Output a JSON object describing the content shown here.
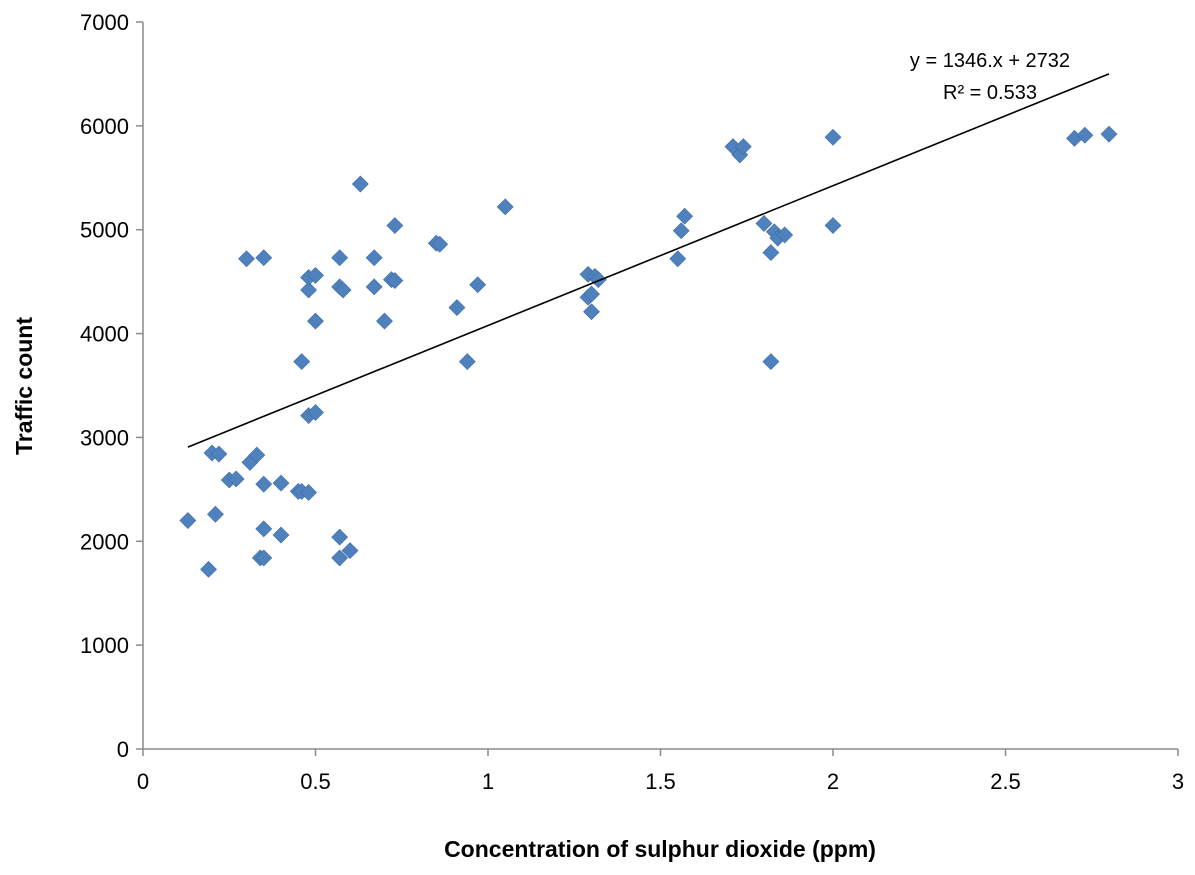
{
  "chart_data": {
    "type": "scatter",
    "title": "",
    "xlabel": "Concentration of sulphur dioxide (ppm)",
    "ylabel": "Traffic count",
    "xlim": [
      0,
      3
    ],
    "ylim": [
      0,
      7000
    ],
    "x_ticks": [
      "0",
      "0.5",
      "1",
      "1.5",
      "2",
      "2.5",
      "3"
    ],
    "y_ticks": [
      "0",
      "1000",
      "2000",
      "3000",
      "4000",
      "5000",
      "6000",
      "7000"
    ],
    "grid": false,
    "legend": "none",
    "marker_color": "#4f81bd",
    "trendline": {
      "equation_label": "y = 1346.x + 2732",
      "r2_label": "R² = 0.533",
      "slope": 1346,
      "intercept": 2732,
      "x_range": [
        0.13,
        2.8
      ]
    },
    "points": [
      [
        0.13,
        2200
      ],
      [
        0.19,
        1730
      ],
      [
        0.2,
        2850
      ],
      [
        0.21,
        2260
      ],
      [
        0.22,
        2840
      ],
      [
        0.25,
        2590
      ],
      [
        0.27,
        2600
      ],
      [
        0.3,
        4720
      ],
      [
        0.31,
        2760
      ],
      [
        0.33,
        2830
      ],
      [
        0.34,
        1840
      ],
      [
        0.35,
        1840
      ],
      [
        0.35,
        2550
      ],
      [
        0.35,
        2120
      ],
      [
        0.35,
        4730
      ],
      [
        0.4,
        2560
      ],
      [
        0.4,
        2060
      ],
      [
        0.45,
        2480
      ],
      [
        0.46,
        2480
      ],
      [
        0.46,
        3730
      ],
      [
        0.48,
        2470
      ],
      [
        0.48,
        3210
      ],
      [
        0.48,
        4420
      ],
      [
        0.48,
        4540
      ],
      [
        0.5,
        4560
      ],
      [
        0.5,
        4120
      ],
      [
        0.5,
        3240
      ],
      [
        0.57,
        1840
      ],
      [
        0.57,
        2040
      ],
      [
        0.57,
        4450
      ],
      [
        0.57,
        4730
      ],
      [
        0.58,
        4420
      ],
      [
        0.6,
        1910
      ],
      [
        0.63,
        5440
      ],
      [
        0.67,
        4730
      ],
      [
        0.67,
        4450
      ],
      [
        0.7,
        4120
      ],
      [
        0.72,
        4520
      ],
      [
        0.73,
        4510
      ],
      [
        0.73,
        5040
      ],
      [
        0.85,
        4870
      ],
      [
        0.86,
        4860
      ],
      [
        0.91,
        4250
      ],
      [
        0.94,
        3730
      ],
      [
        0.97,
        4470
      ],
      [
        1.05,
        5220
      ],
      [
        1.29,
        4570
      ],
      [
        1.29,
        4350
      ],
      [
        1.3,
        4210
      ],
      [
        1.3,
        4380
      ],
      [
        1.31,
        4550
      ],
      [
        1.32,
        4520
      ],
      [
        1.55,
        4720
      ],
      [
        1.56,
        4990
      ],
      [
        1.57,
        5130
      ],
      [
        1.71,
        5800
      ],
      [
        1.73,
        5720
      ],
      [
        1.74,
        5800
      ],
      [
        1.8,
        5060
      ],
      [
        1.82,
        4780
      ],
      [
        1.82,
        3730
      ],
      [
        1.83,
        4980
      ],
      [
        1.84,
        4920
      ],
      [
        1.86,
        4950
      ],
      [
        2.0,
        5890
      ],
      [
        2.0,
        5040
      ],
      [
        2.7,
        5880
      ],
      [
        2.73,
        5910
      ],
      [
        2.8,
        5920
      ]
    ]
  }
}
